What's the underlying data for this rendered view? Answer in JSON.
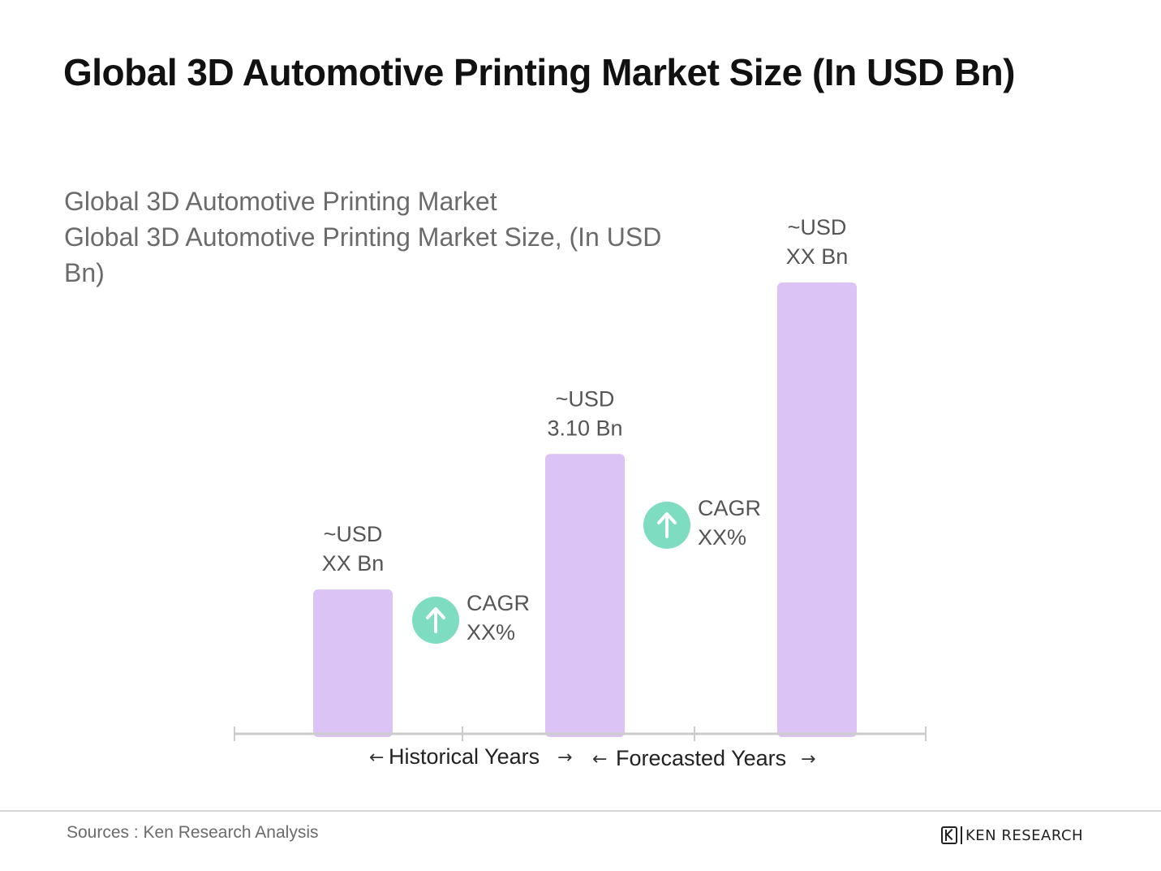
{
  "header": {
    "title": "Global 3D Automotive Printing Market Size (In USD Bn)"
  },
  "legend": {
    "line1": "Global 3D Automotive Printing Market",
    "line2": "Global 3D Automotive Printing Market  Size, (In USD Bn)"
  },
  "chart_data": {
    "type": "bar",
    "categories": [
      "",
      "",
      ""
    ],
    "values": [
      1.6,
      3.1,
      5.0
    ],
    "bar_labels": [
      {
        "line1": "~USD",
        "line2": "XX Bn"
      },
      {
        "line1": "~USD",
        "line2": "3.10 Bn"
      },
      {
        "line1": "~USD",
        "line2": "XX Bn"
      }
    ],
    "cagr": [
      {
        "line1": "CAGR",
        "line2": "XX%"
      },
      {
        "line1": "CAGR",
        "line2": "XX%"
      }
    ],
    "periods": [
      "Historical Years",
      "Forecasted Years"
    ],
    "ylim": [
      0,
      5.5
    ],
    "grid": false,
    "colors": {
      "bar": "#dcc3f5",
      "cagr_icon": "#7edcc1",
      "axis": "#cccccc"
    }
  },
  "footer": {
    "source": "Sources : Ken Research Analysis",
    "logo_text": "KEN RESEARCH"
  }
}
